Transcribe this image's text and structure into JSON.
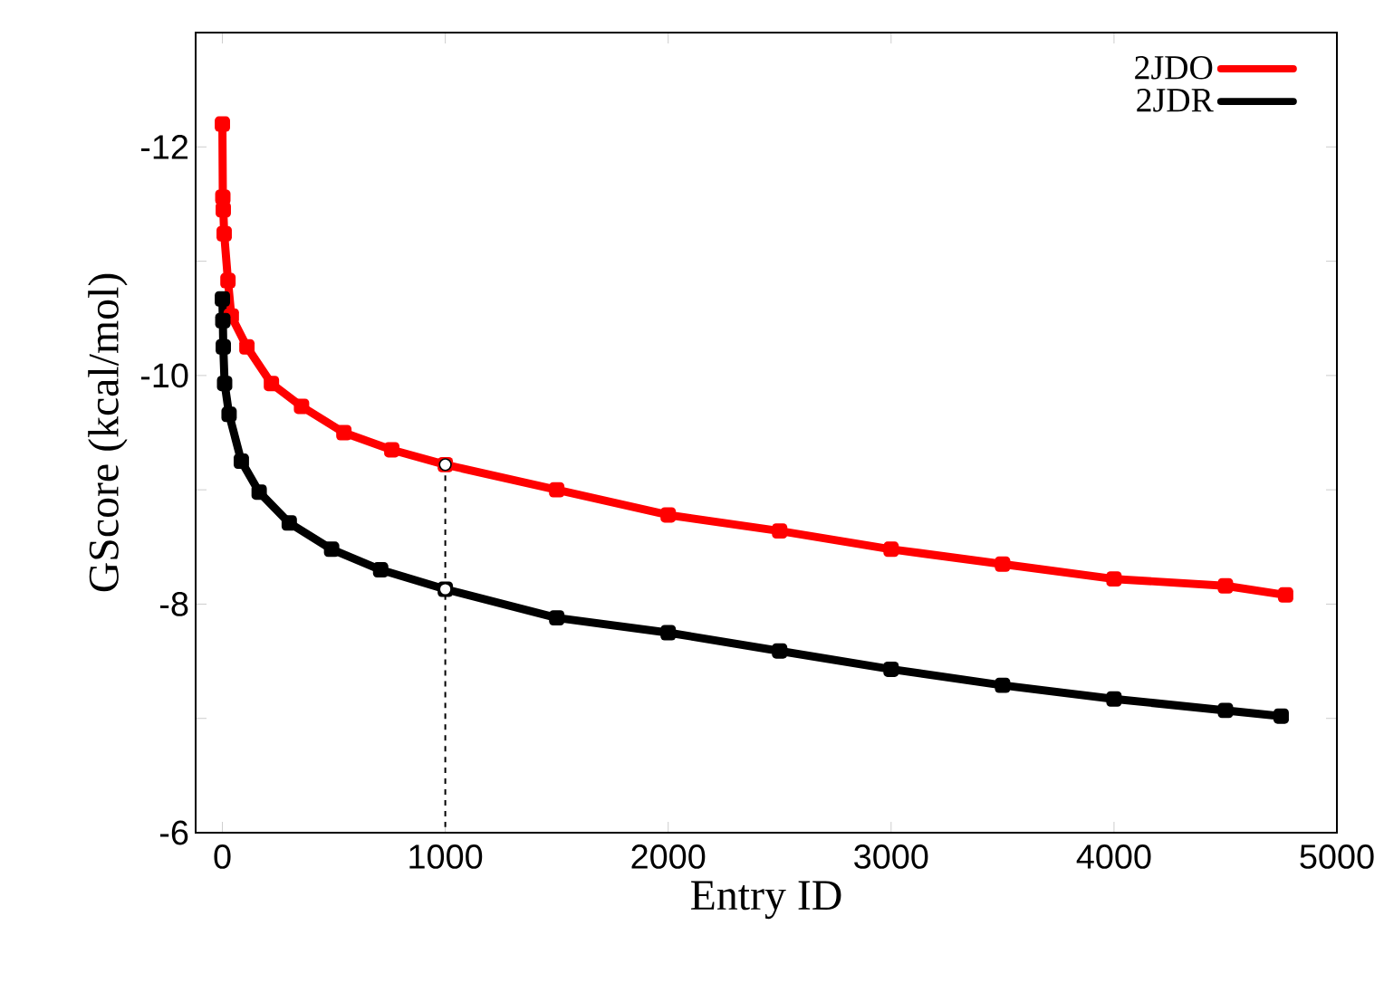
{
  "chart_data": {
    "type": "line",
    "xlabel": "Entry ID",
    "ylabel": "GScore (kcal/mol)",
    "xlim": [
      -120,
      5000
    ],
    "xticks": [
      0,
      1000,
      2000,
      3000,
      4000,
      5000
    ],
    "ylim": [
      -6,
      -13
    ],
    "yticks": [
      {
        "value": -13,
        "label": null
      },
      -12,
      {
        "value": -11,
        "label": null
      },
      -10,
      {
        "value": -9,
        "label": null
      },
      -8,
      {
        "value": -7,
        "label": null
      },
      -6
    ],
    "legend": "top right",
    "marker": "square",
    "series": [
      {
        "name": "2JDO",
        "color": "#ff0000",
        "x": [
          0,
          2,
          4,
          8,
          25,
          40,
          110,
          220,
          355,
          545,
          760,
          1000,
          1500,
          2000,
          2500,
          3000,
          3500,
          4000,
          4500,
          4770
        ],
        "values": [
          -12.2,
          -11.56,
          -11.45,
          -11.24,
          -10.83,
          -10.52,
          -10.25,
          -9.93,
          -9.73,
          -9.5,
          -9.35,
          -9.22,
          -9.0,
          -8.78,
          -8.64,
          -8.48,
          -8.35,
          -8.22,
          -8.16,
          -8.08
        ]
      },
      {
        "name": "2JDR",
        "color": "#000000",
        "x": [
          0,
          2,
          4,
          10,
          30,
          85,
          165,
          300,
          490,
          710,
          1000,
          1500,
          2000,
          2500,
          3000,
          3500,
          4000,
          4500,
          4750
        ],
        "values": [
          -10.67,
          -10.48,
          -10.25,
          -9.93,
          -9.66,
          -9.25,
          -8.98,
          -8.71,
          -8.48,
          -8.3,
          -8.13,
          -7.88,
          -7.75,
          -7.59,
          -7.43,
          -7.29,
          -7.17,
          -7.07,
          -7.02
        ]
      },
      {
        "type": "line",
        "line_style": "dashed",
        "marker": "none",
        "color": "#000000",
        "x": [
          1000,
          1000
        ],
        "values": [
          -9.22,
          -6
        ]
      },
      {
        "type": "scatter",
        "marker": "circle",
        "color": "#ffffff",
        "x": [
          1000,
          1000
        ],
        "values": [
          -9.22,
          -8.13
        ]
      }
    ]
  }
}
